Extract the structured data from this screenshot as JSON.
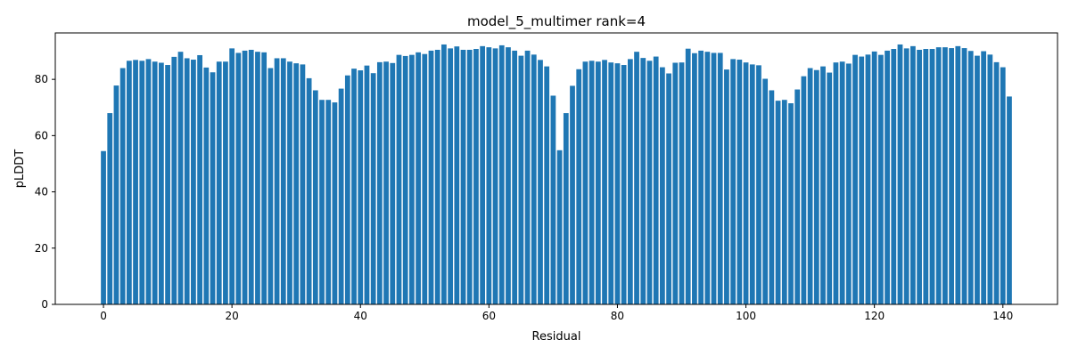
{
  "chart_data": {
    "type": "bar",
    "title": "model_5_multimer rank=4",
    "xlabel": "Residual",
    "ylabel": "pLDDT",
    "xlim": [
      -7.5,
      148.5
    ],
    "ylim": [
      0,
      96.5
    ],
    "xticks": [
      0,
      20,
      40,
      60,
      80,
      100,
      120,
      140
    ],
    "yticks": [
      0,
      20,
      40,
      60,
      80
    ],
    "bar_color": "#1f77b4",
    "grid": false,
    "legend": "none",
    "x": [
      0,
      1,
      2,
      3,
      4,
      5,
      6,
      7,
      8,
      9,
      10,
      11,
      12,
      13,
      14,
      15,
      16,
      17,
      18,
      19,
      20,
      21,
      22,
      23,
      24,
      25,
      26,
      27,
      28,
      29,
      30,
      31,
      32,
      33,
      34,
      35,
      36,
      37,
      38,
      39,
      40,
      41,
      42,
      43,
      44,
      45,
      46,
      47,
      48,
      49,
      50,
      51,
      52,
      53,
      54,
      55,
      56,
      57,
      58,
      59,
      60,
      61,
      62,
      63,
      64,
      65,
      66,
      67,
      68,
      69,
      70,
      71,
      72,
      73,
      74,
      75,
      76,
      77,
      78,
      79,
      80,
      81,
      82,
      83,
      84,
      85,
      86,
      87,
      88,
      89,
      90,
      91,
      92,
      93,
      94,
      95,
      96,
      97,
      98,
      99,
      100,
      101,
      102,
      103,
      104,
      105,
      106,
      107,
      108,
      109,
      110,
      111,
      112,
      113,
      114,
      115,
      116,
      117,
      118,
      119,
      120,
      121,
      122,
      123,
      124,
      125,
      126,
      127,
      128,
      129,
      130,
      131,
      132,
      133,
      134,
      135,
      136,
      137,
      138,
      139,
      140,
      141
    ],
    "values": [
      54.5,
      68.0,
      77.8,
      84.0,
      86.6,
      86.9,
      86.6,
      87.2,
      86.3,
      85.9,
      85.1,
      88.0,
      89.8,
      87.5,
      87.0,
      88.6,
      84.2,
      82.5,
      86.3,
      86.3,
      91.0,
      89.4,
      90.2,
      90.5,
      89.8,
      89.6,
      84.0,
      87.5,
      87.5,
      86.3,
      85.7,
      85.3,
      80.4,
      76.1,
      72.7,
      72.7,
      71.8,
      76.7,
      81.4,
      83.8,
      83.2,
      84.9,
      82.2,
      86.1,
      86.3,
      85.8,
      88.7,
      88.3,
      88.7,
      89.6,
      89.0,
      90.2,
      90.5,
      92.4,
      91.0,
      91.7,
      90.5,
      90.5,
      90.8,
      91.8,
      91.4,
      91.0,
      92.1,
      91.4,
      90.2,
      88.4,
      90.2,
      88.8,
      86.9,
      84.6,
      74.2,
      54.8,
      68.0,
      77.7,
      83.6,
      86.3,
      86.6,
      86.3,
      86.9,
      86.0,
      85.7,
      85.1,
      87.2,
      89.8,
      87.6,
      86.6,
      88.1,
      84.3,
      82.1,
      85.9,
      86.0,
      90.9,
      89.3,
      90.2,
      89.8,
      89.4,
      89.4,
      83.5,
      87.2,
      87.0,
      86.0,
      85.3,
      85.0,
      80.2,
      76.1,
      72.4,
      72.7,
      71.5,
      76.4,
      81.1,
      84.0,
      83.3,
      84.6,
      82.4,
      86.0,
      86.3,
      85.6,
      88.7,
      88.1,
      88.8,
      89.9,
      88.7,
      90.2,
      90.8,
      92.4,
      91.0,
      91.8,
      90.5,
      90.8,
      90.8,
      91.4,
      91.4,
      91.1,
      91.8,
      91.1,
      90.1,
      88.4,
      90.0,
      88.8,
      86.1,
      84.3,
      73.9
    ]
  }
}
